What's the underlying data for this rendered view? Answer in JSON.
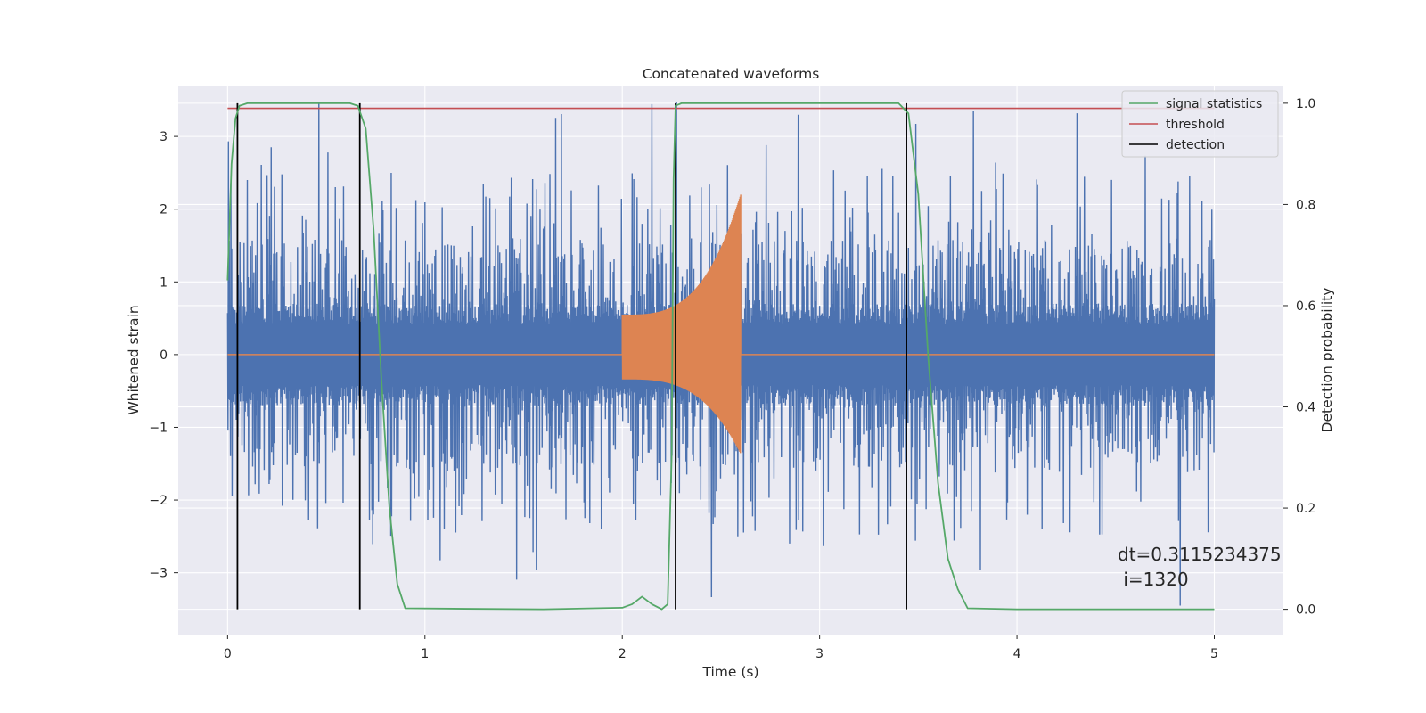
{
  "chart_data": {
    "type": "line",
    "title": "Concatenated waveforms",
    "xlabel": "Time (s)",
    "ylabel": "Whitened strain",
    "ylabel_right": "Detection probability",
    "xlim": [
      -0.25,
      5.35
    ],
    "ylim": [
      -3.85,
      3.7
    ],
    "ylim_right": [
      -0.05,
      1.035
    ],
    "x_ticks": [
      0,
      1,
      2,
      3,
      4,
      5
    ],
    "y_ticks": [
      -3,
      -2,
      -1,
      0,
      1,
      2,
      3
    ],
    "y_ticks_right": [
      0.0,
      0.2,
      0.4,
      0.6,
      0.8,
      1.0
    ],
    "x_tick_labels": [
      "0",
      "1",
      "2",
      "3",
      "4",
      "5"
    ],
    "y_tick_labels": [
      "−3",
      "−2",
      "−1",
      "0",
      "1",
      "2",
      "3"
    ],
    "y_tick_labels_right": [
      "0.0",
      "0.2",
      "0.4",
      "0.6",
      "0.8",
      "1.0"
    ],
    "grid": true,
    "legend_position": "top-right",
    "colors": {
      "background": "#eaeaf2",
      "noise": "#4c72b0",
      "waveform": "#dd8452",
      "signal_statistics": "#55a868",
      "threshold": "#c44e52",
      "detection": "#000000",
      "grid": "#ffffff"
    },
    "series": [
      {
        "name": "",
        "axis": "left",
        "description_kind": "whitened noise strain",
        "x_range": [
          0,
          5
        ],
        "core_amplitude": 0.7,
        "peak_amplitude": 3.5
      },
      {
        "name": "",
        "axis": "left",
        "description_kind": "injected waveform",
        "x_range": [
          2.0,
          2.6
        ],
        "start_amplitude": 0.55,
        "end_amplitude": 2.2
      },
      {
        "name": "signal statistics",
        "axis": "right",
        "x": [
          0,
          0.02,
          0.04,
          0.06,
          0.1,
          0.62,
          0.66,
          0.7,
          0.74,
          0.78,
          0.82,
          0.86,
          0.9,
          1.2,
          1.6,
          2.0,
          2.05,
          2.1,
          2.15,
          2.2,
          2.23,
          2.25,
          2.26,
          2.27,
          2.3,
          3.4,
          3.45,
          3.5,
          3.55,
          3.6,
          3.65,
          3.7,
          3.75,
          4.0,
          5.0
        ],
        "y": [
          0.65,
          0.88,
          0.97,
          0.995,
          1.0,
          1.0,
          0.995,
          0.95,
          0.75,
          0.45,
          0.2,
          0.05,
          0.002,
          0.001,
          0.0,
          0.003,
          0.01,
          0.025,
          0.01,
          0.0,
          0.01,
          0.3,
          0.85,
          0.995,
          1.0,
          1.0,
          0.98,
          0.82,
          0.5,
          0.25,
          0.1,
          0.04,
          0.002,
          0.0,
          0.0
        ]
      },
      {
        "name": "threshold",
        "axis": "right",
        "x": [
          0,
          5
        ],
        "y": [
          0.99,
          0.99
        ]
      },
      {
        "name": "detection",
        "axis": "right",
        "x": [
          0.05,
          0.67,
          2.27,
          3.44
        ],
        "y_range": [
          0.0,
          1.0
        ]
      }
    ],
    "annotations": [
      "dt=0.3115234375",
      " i=1320"
    ]
  }
}
